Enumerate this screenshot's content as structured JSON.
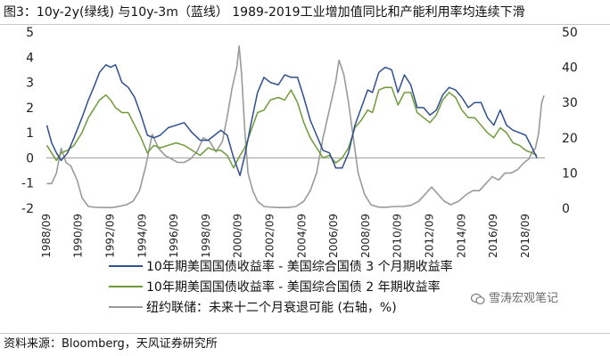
{
  "title": "图3：10y-2y(绿线) 与10y-3m（蓝线） 1989-2019工业增加值同比和产能利用率均连续下滑",
  "source": "资料来源：Bloomberg，天风证券研究所",
  "watermark": {
    "text": "雪涛宏观笔记",
    "icon": "wechat-icon"
  },
  "colors": {
    "blue": "#2f4f8f",
    "green": "#6f9a3a",
    "gray": "#9a9a9a",
    "zero": "#999999"
  },
  "chart_data": {
    "type": "line",
    "title": "",
    "xlabel": "",
    "ylabel": "",
    "x_range": [
      1988.67,
      2019.9
    ],
    "ylim_left": [
      -2,
      5
    ],
    "ylim_right": [
      0,
      50
    ],
    "left_ticks": [
      "-2",
      "-1",
      "0",
      "1",
      "2",
      "3",
      "4",
      "5"
    ],
    "right_ticks": [
      "0",
      "10",
      "20",
      "30",
      "40",
      "50"
    ],
    "x_tick_labels": [
      "1988/09",
      "1990/09",
      "1992/09",
      "1994/09",
      "1996/09",
      "1998/09",
      "2000/09",
      "2002/09",
      "2004/09",
      "2006/09",
      "2008/09",
      "2010/09",
      "2012/09",
      "2014/09",
      "2016/09",
      "2018/09"
    ],
    "series": [
      {
        "name": "10年期美国国债收益率 - 美国综合国债 3 个月期收益率",
        "axis": "left",
        "color": "#2f4f8f",
        "points": [
          [
            1988.7,
            1.3
          ],
          [
            1989.0,
            0.6
          ],
          [
            1989.3,
            0.2
          ],
          [
            1989.6,
            -0.1
          ],
          [
            1990.0,
            0.2
          ],
          [
            1990.4,
            0.8
          ],
          [
            1990.9,
            1.6
          ],
          [
            1991.3,
            2.3
          ],
          [
            1991.7,
            2.9
          ],
          [
            1992.0,
            3.4
          ],
          [
            1992.4,
            3.7
          ],
          [
            1992.7,
            3.6
          ],
          [
            1993.0,
            3.7
          ],
          [
            1993.4,
            3.0
          ],
          [
            1993.8,
            2.8
          ],
          [
            1994.2,
            2.4
          ],
          [
            1994.6,
            1.7
          ],
          [
            1995.0,
            0.9
          ],
          [
            1995.4,
            0.8
          ],
          [
            1995.8,
            0.9
          ],
          [
            1996.3,
            1.2
          ],
          [
            1996.8,
            1.3
          ],
          [
            1997.3,
            1.4
          ],
          [
            1997.8,
            1.0
          ],
          [
            1998.3,
            0.7
          ],
          [
            1998.8,
            0.7
          ],
          [
            1999.2,
            0.9
          ],
          [
            1999.6,
            1.1
          ],
          [
            2000.0,
            0.9
          ],
          [
            2000.4,
            0.0
          ],
          [
            2000.8,
            -0.7
          ],
          [
            2001.1,
            0.1
          ],
          [
            2001.5,
            1.4
          ],
          [
            2001.9,
            2.6
          ],
          [
            2002.3,
            3.2
          ],
          [
            2002.7,
            3.0
          ],
          [
            2003.2,
            2.9
          ],
          [
            2003.6,
            3.3
          ],
          [
            2004.0,
            3.2
          ],
          [
            2004.4,
            3.2
          ],
          [
            2004.8,
            2.4
          ],
          [
            2005.2,
            1.5
          ],
          [
            2005.6,
            0.9
          ],
          [
            2006.0,
            0.3
          ],
          [
            2006.4,
            0.2
          ],
          [
            2006.8,
            -0.4
          ],
          [
            2007.2,
            -0.4
          ],
          [
            2007.6,
            0.2
          ],
          [
            2008.0,
            1.3
          ],
          [
            2008.4,
            2.0
          ],
          [
            2008.8,
            2.7
          ],
          [
            2009.1,
            2.6
          ],
          [
            2009.5,
            3.4
          ],
          [
            2009.9,
            3.6
          ],
          [
            2010.3,
            3.5
          ],
          [
            2010.7,
            2.6
          ],
          [
            2011.1,
            3.3
          ],
          [
            2011.5,
            2.9
          ],
          [
            2011.9,
            2.0
          ],
          [
            2012.3,
            2.0
          ],
          [
            2012.7,
            1.7
          ],
          [
            2013.1,
            1.9
          ],
          [
            2013.5,
            2.5
          ],
          [
            2013.9,
            2.8
          ],
          [
            2014.3,
            2.7
          ],
          [
            2014.7,
            2.4
          ],
          [
            2015.1,
            2.0
          ],
          [
            2015.5,
            2.2
          ],
          [
            2015.9,
            2.2
          ],
          [
            2016.3,
            1.6
          ],
          [
            2016.7,
            1.3
          ],
          [
            2017.1,
            1.9
          ],
          [
            2017.5,
            1.3
          ],
          [
            2017.9,
            1.1
          ],
          [
            2018.3,
            1.0
          ],
          [
            2018.7,
            0.9
          ],
          [
            2019.1,
            0.4
          ],
          [
            2019.4,
            0.0
          ]
        ]
      },
      {
        "name": "10年期美国国债收益率 - 美国综合国债 2 年期收益率",
        "axis": "left",
        "color": "#6f9a3a",
        "points": [
          [
            1988.7,
            0.5
          ],
          [
            1989.0,
            0.2
          ],
          [
            1989.3,
            -0.1
          ],
          [
            1989.6,
            0.2
          ],
          [
            1990.0,
            0.3
          ],
          [
            1990.4,
            0.5
          ],
          [
            1990.9,
            1.0
          ],
          [
            1991.3,
            1.6
          ],
          [
            1991.7,
            2.0
          ],
          [
            1992.0,
            2.3
          ],
          [
            1992.4,
            2.5
          ],
          [
            1992.7,
            2.3
          ],
          [
            1993.0,
            2.0
          ],
          [
            1993.4,
            1.8
          ],
          [
            1993.8,
            1.8
          ],
          [
            1994.2,
            1.3
          ],
          [
            1994.6,
            0.8
          ],
          [
            1995.0,
            0.2
          ],
          [
            1995.4,
            0.5
          ],
          [
            1995.8,
            0.4
          ],
          [
            1996.3,
            0.5
          ],
          [
            1996.8,
            0.6
          ],
          [
            1997.3,
            0.5
          ],
          [
            1997.8,
            0.3
          ],
          [
            1998.3,
            0.1
          ],
          [
            1998.8,
            0.4
          ],
          [
            1999.2,
            0.3
          ],
          [
            1999.6,
            0.3
          ],
          [
            2000.0,
            0.1
          ],
          [
            2000.4,
            -0.4
          ],
          [
            2000.8,
            0.1
          ],
          [
            2001.1,
            0.4
          ],
          [
            2001.5,
            1.1
          ],
          [
            2001.9,
            1.8
          ],
          [
            2002.3,
            1.9
          ],
          [
            2002.7,
            2.3
          ],
          [
            2003.2,
            2.4
          ],
          [
            2003.6,
            2.3
          ],
          [
            2004.0,
            2.7
          ],
          [
            2004.4,
            2.2
          ],
          [
            2004.8,
            1.4
          ],
          [
            2005.2,
            0.8
          ],
          [
            2005.6,
            0.4
          ],
          [
            2006.0,
            0.0
          ],
          [
            2006.4,
            0.1
          ],
          [
            2006.8,
            -0.2
          ],
          [
            2007.2,
            0.0
          ],
          [
            2007.6,
            0.4
          ],
          [
            2008.0,
            1.2
          ],
          [
            2008.4,
            1.5
          ],
          [
            2008.8,
            1.9
          ],
          [
            2009.1,
            1.8
          ],
          [
            2009.5,
            2.7
          ],
          [
            2009.9,
            2.8
          ],
          [
            2010.3,
            2.8
          ],
          [
            2010.7,
            2.1
          ],
          [
            2011.1,
            2.6
          ],
          [
            2011.5,
            2.6
          ],
          [
            2011.9,
            1.8
          ],
          [
            2012.3,
            1.6
          ],
          [
            2012.7,
            1.4
          ],
          [
            2013.1,
            1.7
          ],
          [
            2013.5,
            2.3
          ],
          [
            2013.9,
            2.6
          ],
          [
            2014.3,
            2.4
          ],
          [
            2014.7,
            1.9
          ],
          [
            2015.1,
            1.6
          ],
          [
            2015.5,
            1.6
          ],
          [
            2015.9,
            1.3
          ],
          [
            2016.3,
            1.0
          ],
          [
            2016.7,
            0.8
          ],
          [
            2017.1,
            1.2
          ],
          [
            2017.5,
            1.0
          ],
          [
            2017.9,
            0.6
          ],
          [
            2018.3,
            0.5
          ],
          [
            2018.7,
            0.3
          ],
          [
            2019.1,
            0.2
          ],
          [
            2019.4,
            0.1
          ]
        ]
      },
      {
        "name": "纽约联储：未来十二个月衰退可能 (右轴，%)",
        "axis": "right",
        "color": "#9a9a9a",
        "points": [
          [
            1988.7,
            7
          ],
          [
            1989.0,
            7
          ],
          [
            1989.3,
            10
          ],
          [
            1989.6,
            17
          ],
          [
            1989.9,
            13
          ],
          [
            1990.2,
            12
          ],
          [
            1990.6,
            8
          ],
          [
            1990.9,
            3
          ],
          [
            1991.3,
            0.5
          ],
          [
            1991.7,
            0.3
          ],
          [
            1992.2,
            0.2
          ],
          [
            1992.8,
            0.2
          ],
          [
            1993.3,
            0.6
          ],
          [
            1993.7,
            1
          ],
          [
            1994.1,
            2
          ],
          [
            1994.5,
            5
          ],
          [
            1994.9,
            12
          ],
          [
            1995.3,
            21
          ],
          [
            1995.7,
            17
          ],
          [
            1996.1,
            15
          ],
          [
            1996.5,
            14
          ],
          [
            1996.9,
            13
          ],
          [
            1997.3,
            13
          ],
          [
            1997.7,
            14
          ],
          [
            1998.1,
            16
          ],
          [
            1998.5,
            20
          ],
          [
            1998.9,
            19
          ],
          [
            1999.3,
            16
          ],
          [
            1999.7,
            19
          ],
          [
            2000.0,
            26
          ],
          [
            2000.3,
            34
          ],
          [
            2000.6,
            40
          ],
          [
            2000.75,
            46
          ],
          [
            2000.9,
            38
          ],
          [
            2001.1,
            22
          ],
          [
            2001.3,
            10
          ],
          [
            2001.6,
            5
          ],
          [
            2001.9,
            2
          ],
          [
            2002.3,
            0.5
          ],
          [
            2002.8,
            0.3
          ],
          [
            2003.3,
            0.2
          ],
          [
            2003.8,
            0.2
          ],
          [
            2004.3,
            0.5
          ],
          [
            2004.8,
            2
          ],
          [
            2005.2,
            5
          ],
          [
            2005.6,
            10
          ],
          [
            2006.0,
            20
          ],
          [
            2006.4,
            28
          ],
          [
            2006.8,
            36
          ],
          [
            2007.0,
            42
          ],
          [
            2007.3,
            38
          ],
          [
            2007.6,
            30
          ],
          [
            2007.9,
            20
          ],
          [
            2008.2,
            10
          ],
          [
            2008.6,
            4
          ],
          [
            2009.0,
            1
          ],
          [
            2009.5,
            0.3
          ],
          [
            2010.0,
            0.3
          ],
          [
            2010.5,
            0.5
          ],
          [
            2011.0,
            0.5
          ],
          [
            2011.5,
            0.8
          ],
          [
            2012.0,
            2
          ],
          [
            2012.4,
            4
          ],
          [
            2012.8,
            6
          ],
          [
            2013.2,
            4
          ],
          [
            2013.6,
            2
          ],
          [
            2014.0,
            1
          ],
          [
            2014.5,
            2
          ],
          [
            2015.0,
            4
          ],
          [
            2015.4,
            5
          ],
          [
            2015.8,
            5
          ],
          [
            2016.2,
            7
          ],
          [
            2016.6,
            9
          ],
          [
            2017.0,
            8
          ],
          [
            2017.4,
            10
          ],
          [
            2017.8,
            10
          ],
          [
            2018.2,
            11
          ],
          [
            2018.6,
            13
          ],
          [
            2018.9,
            14
          ],
          [
            2019.1,
            16
          ],
          [
            2019.3,
            17
          ],
          [
            2019.5,
            21
          ],
          [
            2019.7,
            30
          ],
          [
            2019.85,
            32
          ]
        ]
      }
    ]
  }
}
